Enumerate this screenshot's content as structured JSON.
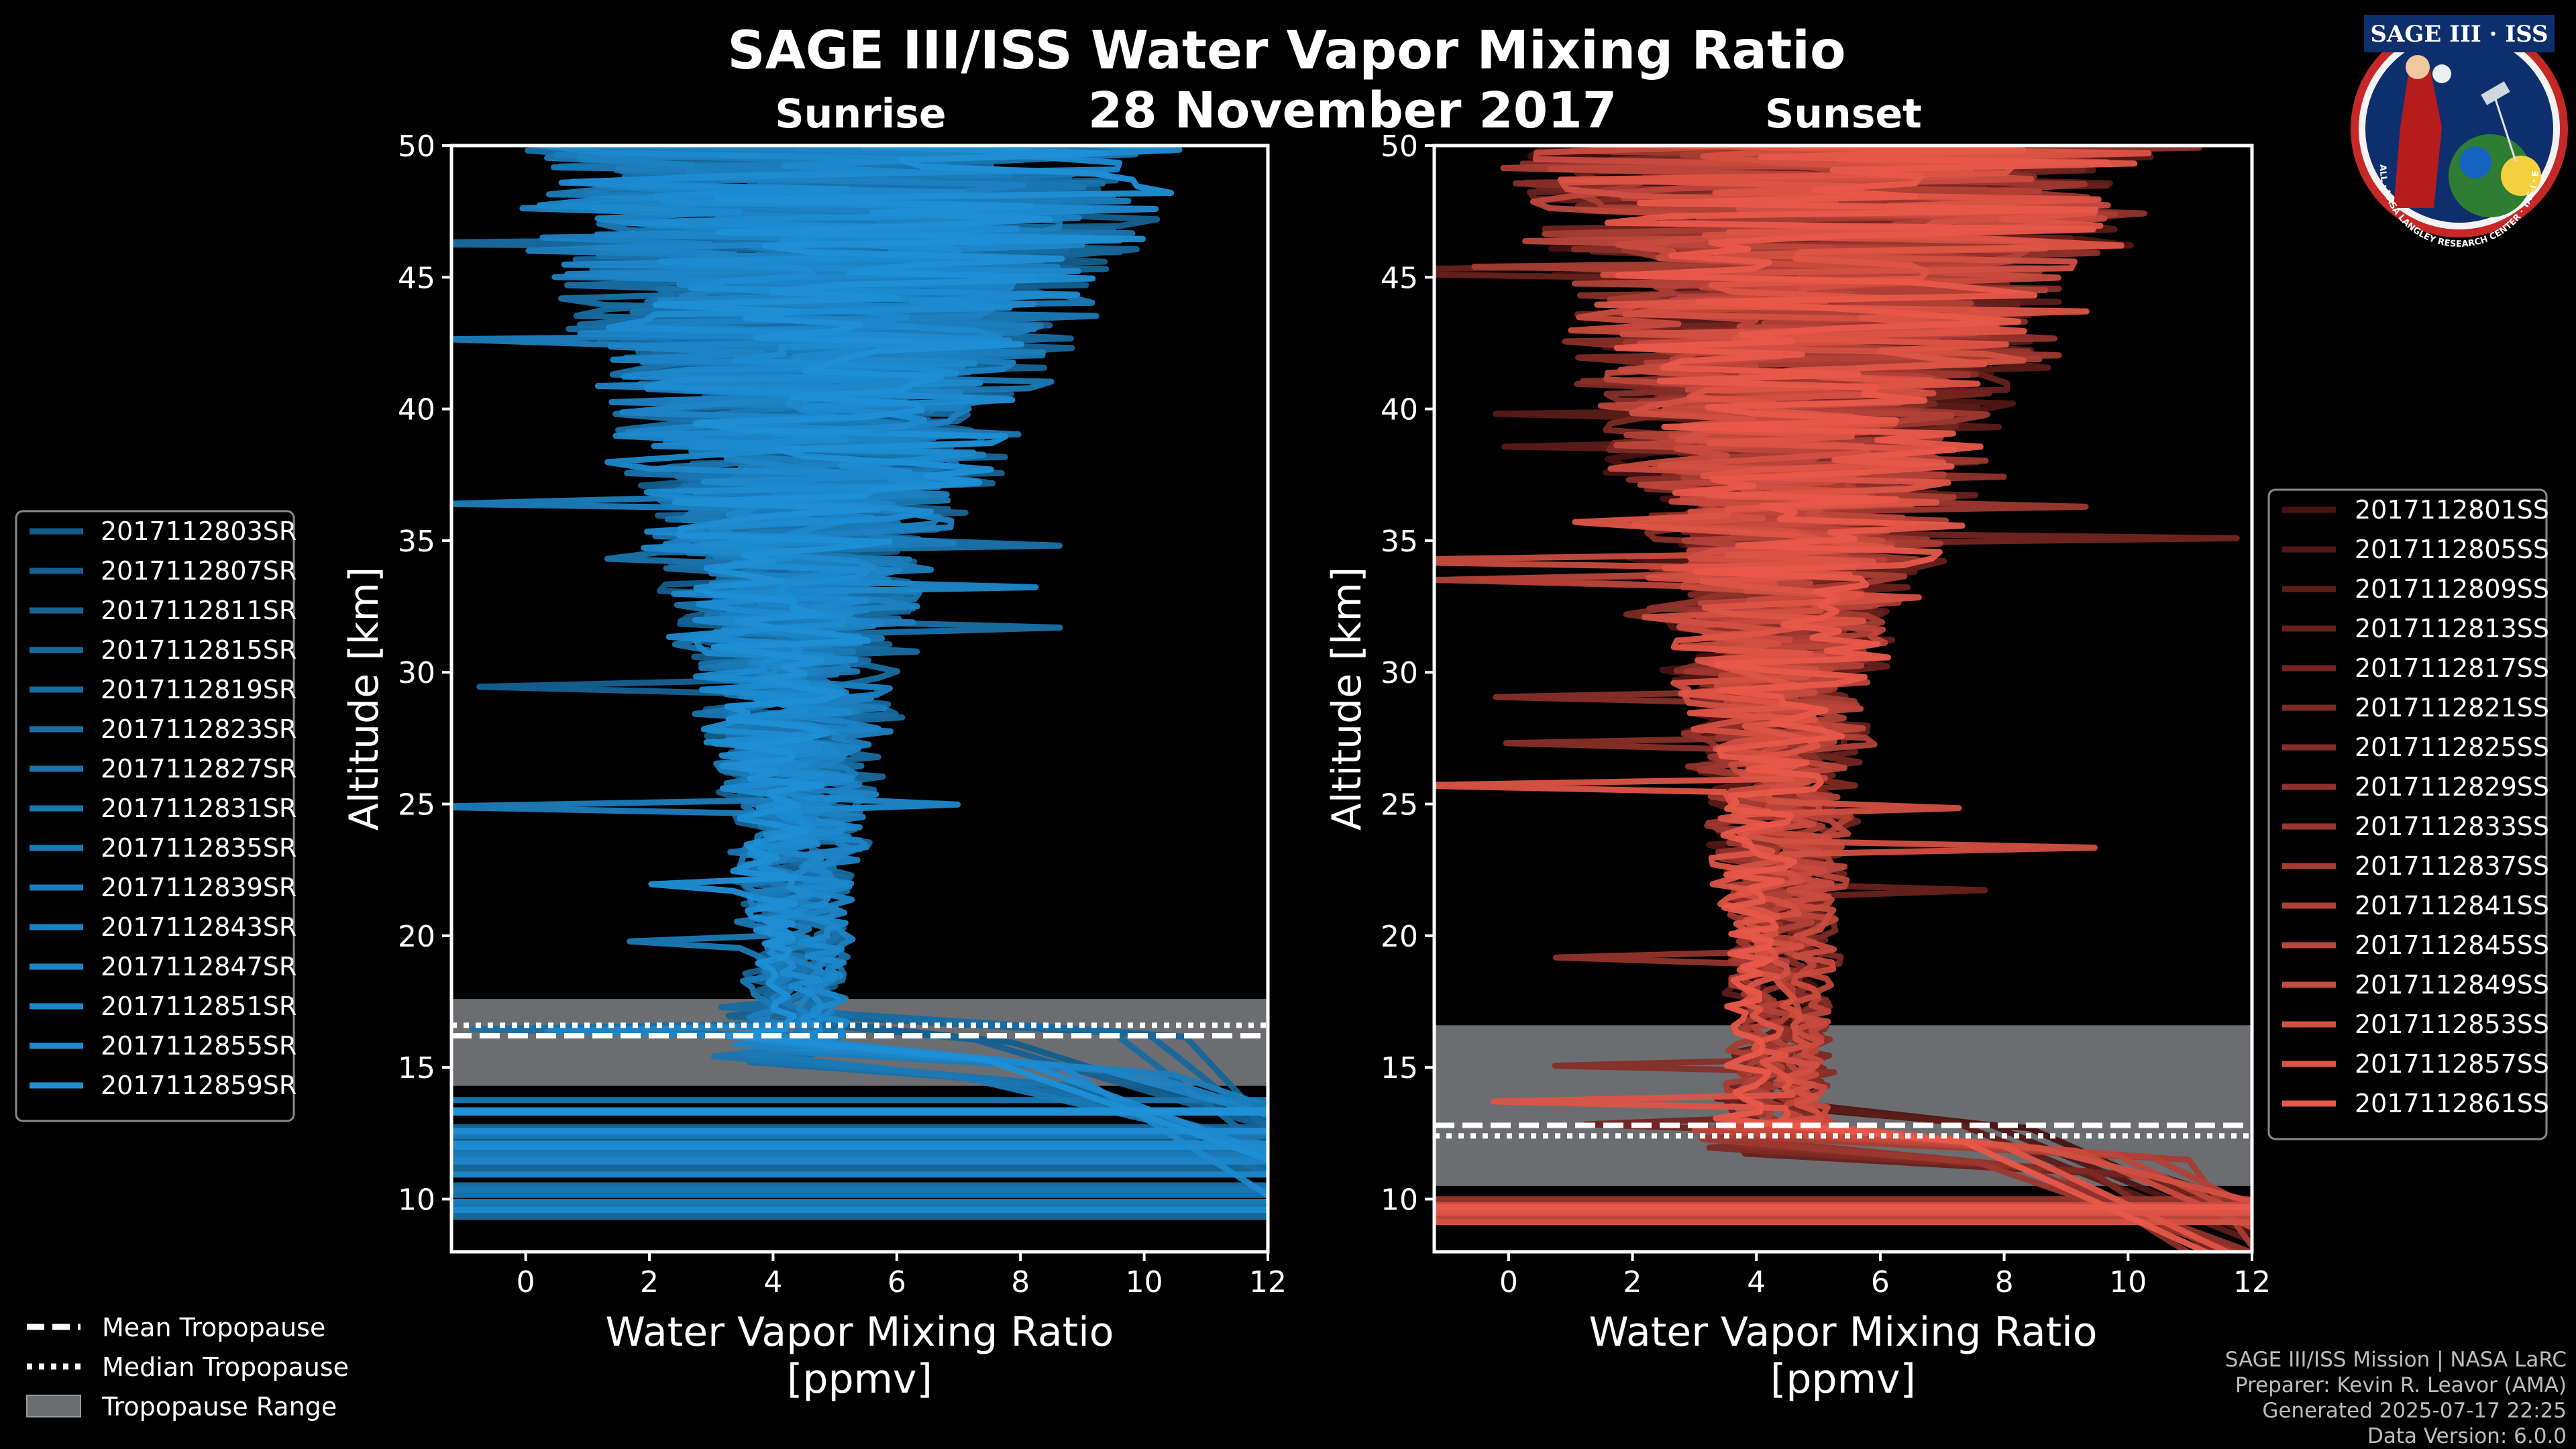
{
  "header": {
    "title": "SAGE III/ISS Water Vapor Mixing Ratio",
    "date": "28 November 2017",
    "left_label": "Sunrise",
    "right_label": "Sunset"
  },
  "logo": {
    "text": "SAGE III · ISS",
    "ring_text": "BALL · NASA LANGLEY RESEARCH CENTER · TAS-I · ESA"
  },
  "colors": {
    "background": "#000000",
    "sunrise": "#1f8fd6",
    "sunset": "#e8594a",
    "trop_range": "#6b6d70",
    "axis": "#ffffff"
  },
  "chart_data": [
    {
      "type": "line",
      "panel": "sunrise",
      "xlabel": "Water Vapor Mixing Ratio\n[ppmv]",
      "xlabel_line1": "Water Vapor Mixing Ratio",
      "xlabel_line2": "[ppmv]",
      "ylabel": "Altitude [km]",
      "xlim": [
        -1.2,
        12
      ],
      "ylim": [
        8,
        50
      ],
      "xticks": [
        0,
        2,
        4,
        6,
        8,
        10,
        12
      ],
      "yticks": [
        10,
        15,
        20,
        25,
        30,
        35,
        40,
        45,
        50
      ],
      "tropopause": {
        "mean": 16.2,
        "median": 16.6,
        "range": [
          14.3,
          17.6
        ]
      },
      "series": [
        {
          "name": "2017112803SR"
        },
        {
          "name": "2017112807SR"
        },
        {
          "name": "2017112811SR"
        },
        {
          "name": "2017112815SR"
        },
        {
          "name": "2017112819SR"
        },
        {
          "name": "2017112823SR"
        },
        {
          "name": "2017112827SR"
        },
        {
          "name": "2017112831SR"
        },
        {
          "name": "2017112835SR"
        },
        {
          "name": "2017112839SR"
        },
        {
          "name": "2017112843SR"
        },
        {
          "name": "2017112847SR"
        },
        {
          "name": "2017112851SR"
        },
        {
          "name": "2017112855SR"
        },
        {
          "name": "2017112859SR"
        }
      ]
    },
    {
      "type": "line",
      "panel": "sunset",
      "xlabel": "Water Vapor Mixing Ratio\n[ppmv]",
      "xlabel_line1": "Water Vapor Mixing Ratio",
      "xlabel_line2": "[ppmv]",
      "ylabel": "Altitude [km]",
      "xlim": [
        -1.2,
        12
      ],
      "ylim": [
        8,
        50
      ],
      "xticks": [
        0,
        2,
        4,
        6,
        8,
        10,
        12
      ],
      "yticks": [
        10,
        15,
        20,
        25,
        30,
        35,
        40,
        45,
        50
      ],
      "tropopause": {
        "mean": 12.8,
        "median": 12.4,
        "range": [
          10.5,
          16.6
        ]
      },
      "series": [
        {
          "name": "2017112801SS"
        },
        {
          "name": "2017112805SS"
        },
        {
          "name": "2017112809SS"
        },
        {
          "name": "2017112813SS"
        },
        {
          "name": "2017112817SS"
        },
        {
          "name": "2017112821SS"
        },
        {
          "name": "2017112825SS"
        },
        {
          "name": "2017112829SS"
        },
        {
          "name": "2017112833SS"
        },
        {
          "name": "2017112837SS"
        },
        {
          "name": "2017112841SS"
        },
        {
          "name": "2017112845SS"
        },
        {
          "name": "2017112849SS"
        },
        {
          "name": "2017112853SS"
        },
        {
          "name": "2017112857SS"
        },
        {
          "name": "2017112861SS"
        }
      ]
    }
  ],
  "tropopause_legend": {
    "mean": "Mean Tropopause",
    "median": "Median Tropopause",
    "range": "Tropopause Range"
  },
  "credits": {
    "line1": "SAGE III/ISS Mission | NASA LaRC",
    "line2": "Preparer: Kevin R. Leavor (AMA)",
    "line3": "Generated 2025-07-17 22:25",
    "line4": "Data Version: 6.0.0"
  }
}
